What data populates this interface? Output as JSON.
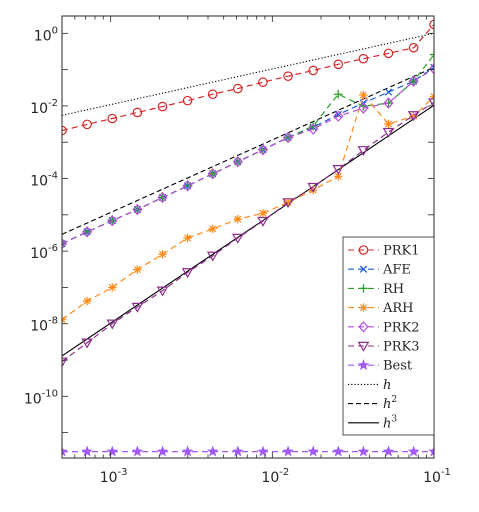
{
  "chart_data": {
    "type": "line",
    "xscale": "log",
    "yscale": "log",
    "xlim": [
      0.0005,
      0.1
    ],
    "ylim": [
      2e-12,
      3
    ],
    "grid": false,
    "legend_placement": "right",
    "x_tick_labels": [
      {
        "value": 0.001,
        "base": "10",
        "exp": "-3"
      },
      {
        "value": 0.01,
        "base": "10",
        "exp": "-2"
      },
      {
        "value": 0.1,
        "base": "10",
        "exp": "-1"
      }
    ],
    "y_tick_labels": [
      {
        "value": 1,
        "base": "10",
        "exp": "0"
      },
      {
        "value": 0.01,
        "base": "10",
        "exp": "-2"
      },
      {
        "value": 0.0001,
        "base": "10",
        "exp": "-4"
      },
      {
        "value": 1e-06,
        "base": "10",
        "exp": "-6"
      },
      {
        "value": 1e-08,
        "base": "10",
        "exp": "-8"
      },
      {
        "value": 1e-10,
        "base": "10",
        "exp": "-10"
      }
    ],
    "x": [
      0.0005,
      0.000715,
      0.001023,
      0.001463,
      0.002092,
      0.002991,
      0.004278,
      0.006117,
      0.008747,
      0.01251,
      0.01789,
      0.02558,
      0.03658,
      0.05231,
      0.07481,
      0.1
    ],
    "series": [
      {
        "name": "PRK1",
        "color": "#d62728",
        "marker": "circle",
        "dash": "6,4",
        "values": [
          0.0021,
          0.0031,
          0.0045,
          0.0066,
          0.0096,
          0.014,
          0.021,
          0.03,
          0.045,
          0.066,
          0.095,
          0.14,
          0.2,
          0.28,
          0.4,
          1.75
        ]
      },
      {
        "name": "AFE",
        "color": "#1f5fd6",
        "marker": "x",
        "dash": "6,4",
        "values": [
          1.6e-06,
          3.4e-06,
          6.9e-06,
          1.4e-05,
          3e-05,
          6.3e-05,
          0.000135,
          0.00029,
          0.00062,
          0.00135,
          0.0026,
          0.0058,
          0.012,
          0.024,
          0.048,
          0.115
        ]
      },
      {
        "name": "RH",
        "color": "#2ca02c",
        "marker": "plus",
        "dash": "6,4",
        "values": [
          1.6e-06,
          3.4e-06,
          6.9e-06,
          1.4e-05,
          3e-05,
          6.3e-05,
          0.000135,
          0.00029,
          0.00062,
          0.00135,
          0.0028,
          0.021,
          0.0098,
          0.012,
          0.048,
          0.26
        ]
      },
      {
        "name": "ARH",
        "color": "#ff8c1a",
        "marker": "asterisk",
        "dash": "6,4",
        "values": [
          1.3e-08,
          4.2e-08,
          1e-07,
          3.1e-07,
          8.2e-07,
          2.3e-06,
          4.1e-06,
          7.6e-06,
          1.1e-05,
          2.2e-05,
          4.8e-05,
          0.000115,
          0.02,
          0.0032,
          0.0052,
          0.018
        ]
      },
      {
        "name": "PRK2",
        "color": "#b44fd6",
        "marker": "diamond",
        "dash": "6,4",
        "values": [
          1.6e-06,
          3.4e-06,
          6.9e-06,
          1.4e-05,
          3e-05,
          6.3e-05,
          0.000135,
          0.00029,
          0.00062,
          0.00135,
          0.0023,
          0.0052,
          0.0087,
          0.012,
          0.048,
          0.105
        ]
      },
      {
        "name": "PRK3",
        "color": "#8b2f8b",
        "marker": "triangle-down",
        "dash": "6,4",
        "values": [
          9e-10,
          3e-09,
          1e-08,
          2.9e-08,
          8.1e-08,
          2.6e-07,
          7.4e-07,
          2.3e-06,
          6.7e-06,
          2.2e-05,
          5.8e-05,
          0.00018,
          0.0006,
          0.0019,
          0.0055,
          0.0125
        ]
      },
      {
        "name": "Best",
        "color": "#a259f7",
        "marker": "star",
        "dash": "6,4",
        "values": [
          3e-12,
          3e-12,
          3e-12,
          3e-12,
          3e-12,
          3e-12,
          3e-12,
          3e-12,
          3e-12,
          3e-12,
          3e-12,
          3e-12,
          3e-12,
          3e-12,
          3e-12,
          3e-12
        ]
      },
      {
        "name": "h",
        "name_italic": true,
        "color": "#000000",
        "marker": "none",
        "dash": "1.2,2",
        "values_at_xlim": [
          0.0055,
          1.0
        ]
      },
      {
        "name": "h",
        "exponent": "2",
        "name_italic": true,
        "color": "#000000",
        "marker": "none",
        "dash": "5,3",
        "values_at_xlim": [
          2.9e-06,
          0.116
        ]
      },
      {
        "name": "h",
        "exponent": "3",
        "name_italic": true,
        "color": "#000000",
        "marker": "none",
        "dash": "",
        "values_at_xlim": [
          1.3e-09,
          0.0105
        ]
      }
    ]
  }
}
